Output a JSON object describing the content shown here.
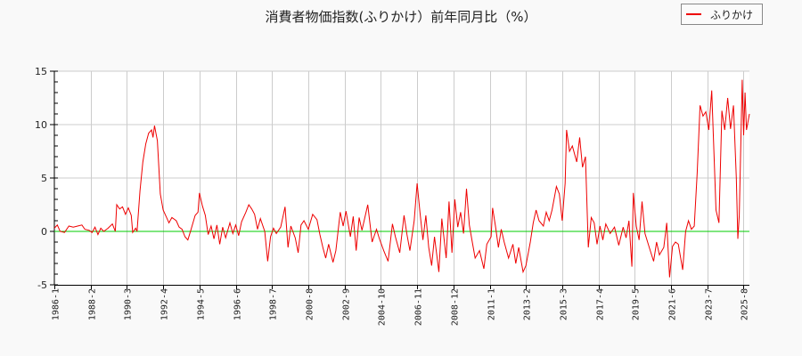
{
  "title": "消費者物価指数(ふりかけ）前年同月比（%）",
  "legend": {
    "label": "ふりかけ",
    "color": "#ee0000"
  },
  "colors": {
    "line": "#ee0000",
    "zero_line": "#00cc00",
    "grid": "#cccccc",
    "axis": "#000000",
    "plot_bg": "#ffffff",
    "page_bg": "#f9f9f9"
  },
  "chart_data": {
    "type": "line",
    "title": "消費者物価指数(ふりかけ）前年同月比（%）",
    "xlabel": "",
    "ylabel": "",
    "ylim": [
      -5,
      15
    ],
    "yticks": [
      -5,
      0,
      5,
      10,
      15
    ],
    "xticks": [
      "1986-1",
      "1988-2",
      "1990-3",
      "1992-4",
      "1994-5",
      "1996-6",
      "1998-7",
      "2000-8",
      "2002-9",
      "2004-10",
      "2006-11",
      "2008-12",
      "2011-1",
      "2013-2",
      "2015-3",
      "2017-4",
      "2019-5",
      "2021-6",
      "2023-7",
      "2025-8"
    ],
    "x_range": [
      "1986-1",
      "2025-12"
    ],
    "grid": true,
    "legend_position": "top-right",
    "series": [
      {
        "name": "ふりかけ",
        "points": [
          [
            "1986-1",
            0.3
          ],
          [
            "1986-3",
            0.6
          ],
          [
            "1986-5",
            0.0
          ],
          [
            "1986-8",
            -0.1
          ],
          [
            "1986-11",
            0.5
          ],
          [
            "1987-2",
            0.4
          ],
          [
            "1987-5",
            0.5
          ],
          [
            "1987-8",
            0.6
          ],
          [
            "1987-10",
            0.2
          ],
          [
            "1988-1",
            0.1
          ],
          [
            "1988-3",
            -0.1
          ],
          [
            "1988-5",
            0.4
          ],
          [
            "1988-7",
            -0.3
          ],
          [
            "1988-9",
            0.3
          ],
          [
            "1988-11",
            0.0
          ],
          [
            "1989-2",
            0.3
          ],
          [
            "1989-5",
            0.7
          ],
          [
            "1989-7",
            0.0
          ],
          [
            "1989-8",
            2.5
          ],
          [
            "1989-10",
            2.1
          ],
          [
            "1989-12",
            2.3
          ],
          [
            "1990-2",
            1.6
          ],
          [
            "1990-4",
            2.2
          ],
          [
            "1990-6",
            1.5
          ],
          [
            "1990-7",
            -0.1
          ],
          [
            "1990-9",
            0.3
          ],
          [
            "1990-10",
            0.0
          ],
          [
            "1990-12",
            3.8
          ],
          [
            "1991-2",
            6.5
          ],
          [
            "1991-4",
            8.2
          ],
          [
            "1991-6",
            9.2
          ],
          [
            "1991-8",
            9.5
          ],
          [
            "1991-9",
            8.8
          ],
          [
            "1991-10",
            9.9
          ],
          [
            "1991-12",
            8.5
          ],
          [
            "1992-2",
            3.5
          ],
          [
            "1992-4",
            2.0
          ],
          [
            "1992-6",
            1.4
          ],
          [
            "1992-8",
            0.8
          ],
          [
            "1992-10",
            1.3
          ],
          [
            "1993-1",
            1.0
          ],
          [
            "1993-3",
            0.4
          ],
          [
            "1993-5",
            0.2
          ],
          [
            "1993-7",
            -0.5
          ],
          [
            "1993-9",
            -0.8
          ],
          [
            "1993-11",
            0.1
          ],
          [
            "1994-2",
            1.5
          ],
          [
            "1994-4",
            1.8
          ],
          [
            "1994-5",
            3.6
          ],
          [
            "1994-7",
            2.4
          ],
          [
            "1994-9",
            1.5
          ],
          [
            "1994-11",
            -0.3
          ],
          [
            "1995-1",
            0.5
          ],
          [
            "1995-3",
            -0.7
          ],
          [
            "1995-5",
            0.6
          ],
          [
            "1995-7",
            -1.2
          ],
          [
            "1995-9",
            0.4
          ],
          [
            "1995-11",
            -0.6
          ],
          [
            "1996-2",
            0.8
          ],
          [
            "1996-4",
            -0.2
          ],
          [
            "1996-6",
            0.6
          ],
          [
            "1996-8",
            -0.4
          ],
          [
            "1996-10",
            0.9
          ],
          [
            "1997-1",
            1.8
          ],
          [
            "1997-3",
            2.5
          ],
          [
            "1997-5",
            2.1
          ],
          [
            "1997-7",
            1.6
          ],
          [
            "1997-9",
            0.2
          ],
          [
            "1997-11",
            1.2
          ],
          [
            "1998-2",
            0.0
          ],
          [
            "1998-4",
            -2.8
          ],
          [
            "1998-6",
            -0.5
          ],
          [
            "1998-8",
            0.3
          ],
          [
            "1998-10",
            -0.2
          ],
          [
            "1999-1",
            0.4
          ],
          [
            "1999-4",
            2.3
          ],
          [
            "1999-6",
            -1.5
          ],
          [
            "1999-8",
            0.5
          ],
          [
            "1999-11",
            -0.6
          ],
          [
            "2000-1",
            -2.0
          ],
          [
            "2000-3",
            0.6
          ],
          [
            "2000-5",
            1.0
          ],
          [
            "2000-8",
            0.2
          ],
          [
            "2000-11",
            1.6
          ],
          [
            "2001-2",
            1.1
          ],
          [
            "2001-4",
            -0.3
          ],
          [
            "2001-6",
            -1.5
          ],
          [
            "2001-8",
            -2.5
          ],
          [
            "2001-10",
            -1.2
          ],
          [
            "2002-1",
            -2.9
          ],
          [
            "2002-3",
            -1.8
          ],
          [
            "2002-6",
            1.8
          ],
          [
            "2002-8",
            0.5
          ],
          [
            "2002-10",
            1.9
          ],
          [
            "2003-1",
            -0.5
          ],
          [
            "2003-3",
            1.4
          ],
          [
            "2003-5",
            -1.8
          ],
          [
            "2003-7",
            1.3
          ],
          [
            "2003-9",
            0.1
          ],
          [
            "2004-1",
            2.5
          ],
          [
            "2004-4",
            -1.0
          ],
          [
            "2004-7",
            0.2
          ],
          [
            "2004-9",
            -0.7
          ],
          [
            "2004-12",
            -1.8
          ],
          [
            "2005-3",
            -2.8
          ],
          [
            "2005-6",
            0.7
          ],
          [
            "2005-8",
            -0.5
          ],
          [
            "2005-11",
            -2.0
          ],
          [
            "2006-2",
            1.5
          ],
          [
            "2006-4",
            -0.3
          ],
          [
            "2006-6",
            -1.8
          ],
          [
            "2006-9",
            1.0
          ],
          [
            "2006-11",
            4.5
          ],
          [
            "2007-1",
            1.7
          ],
          [
            "2007-3",
            -0.8
          ],
          [
            "2007-5",
            1.5
          ],
          [
            "2007-7",
            -1.5
          ],
          [
            "2007-9",
            -3.2
          ],
          [
            "2007-11",
            -0.5
          ],
          [
            "2008-2",
            -3.8
          ],
          [
            "2008-4",
            1.2
          ],
          [
            "2008-7",
            -2.5
          ],
          [
            "2008-9",
            2.8
          ],
          [
            "2008-11",
            -2.0
          ],
          [
            "2009-1",
            3.0
          ],
          [
            "2009-3",
            0.4
          ],
          [
            "2009-5",
            1.8
          ],
          [
            "2009-7",
            -0.2
          ],
          [
            "2009-9",
            4.0
          ],
          [
            "2009-11",
            0.6
          ],
          [
            "2010-1",
            -1.0
          ],
          [
            "2010-3",
            -2.5
          ],
          [
            "2010-6",
            -1.8
          ],
          [
            "2010-9",
            -3.5
          ],
          [
            "2010-11",
            -1.2
          ],
          [
            "2011-2",
            -0.5
          ],
          [
            "2011-3",
            2.2
          ],
          [
            "2011-5",
            0.5
          ],
          [
            "2011-7",
            -1.5
          ],
          [
            "2011-9",
            0.2
          ],
          [
            "2011-11",
            -1.0
          ],
          [
            "2012-2",
            -2.5
          ],
          [
            "2012-5",
            -1.2
          ],
          [
            "2012-7",
            -3.0
          ],
          [
            "2012-9",
            -1.5
          ],
          [
            "2012-12",
            -3.8
          ],
          [
            "2013-2",
            -3.2
          ],
          [
            "2013-5",
            -1.0
          ],
          [
            "2013-7",
            0.8
          ],
          [
            "2013-9",
            2.0
          ],
          [
            "2013-11",
            1.0
          ],
          [
            "2014-2",
            0.5
          ],
          [
            "2014-4",
            1.8
          ],
          [
            "2014-6",
            1.0
          ],
          [
            "2014-8",
            2.0
          ],
          [
            "2014-11",
            4.2
          ],
          [
            "2015-1",
            3.5
          ],
          [
            "2015-3",
            1.0
          ],
          [
            "2015-5",
            4.5
          ],
          [
            "2015-6",
            9.5
          ],
          [
            "2015-8",
            7.5
          ],
          [
            "2015-10",
            8.0
          ],
          [
            "2016-1",
            6.5
          ],
          [
            "2016-3",
            8.8
          ],
          [
            "2016-5",
            6.0
          ],
          [
            "2016-7",
            7.0
          ],
          [
            "2016-9",
            -1.5
          ],
          [
            "2016-11",
            1.3
          ],
          [
            "2017-1",
            0.8
          ],
          [
            "2017-3",
            -1.2
          ],
          [
            "2017-5",
            0.5
          ],
          [
            "2017-7",
            -0.8
          ],
          [
            "2017-9",
            0.7
          ],
          [
            "2017-12",
            -0.2
          ],
          [
            "2018-3",
            0.4
          ],
          [
            "2018-6",
            -1.3
          ],
          [
            "2018-9",
            0.4
          ],
          [
            "2018-11",
            -0.6
          ],
          [
            "2019-1",
            1.0
          ],
          [
            "2019-3",
            -3.3
          ],
          [
            "2019-4",
            3.6
          ],
          [
            "2019-6",
            0.5
          ],
          [
            "2019-8",
            -0.8
          ],
          [
            "2019-10",
            2.8
          ],
          [
            "2019-12",
            -0.2
          ],
          [
            "2020-3",
            -1.5
          ],
          [
            "2020-6",
            -2.8
          ],
          [
            "2020-8",
            -1.0
          ],
          [
            "2020-10",
            -2.2
          ],
          [
            "2021-1",
            -1.5
          ],
          [
            "2021-3",
            0.8
          ],
          [
            "2021-5",
            -4.3
          ],
          [
            "2021-7",
            -1.4
          ],
          [
            "2021-9",
            -1.0
          ],
          [
            "2021-11",
            -1.2
          ],
          [
            "2022-2",
            -3.6
          ],
          [
            "2022-4",
            0.0
          ],
          [
            "2022-6",
            1.0
          ],
          [
            "2022-8",
            0.2
          ],
          [
            "2022-10",
            0.5
          ],
          [
            "2022-12",
            5.5
          ],
          [
            "2023-2",
            11.8
          ],
          [
            "2023-4",
            10.8
          ],
          [
            "2023-6",
            11.2
          ],
          [
            "2023-8",
            9.5
          ],
          [
            "2023-10",
            13.2
          ],
          [
            "2024-1",
            2.0
          ],
          [
            "2024-3",
            0.8
          ],
          [
            "2024-5",
            11.3
          ],
          [
            "2024-7",
            9.5
          ],
          [
            "2024-9",
            12.5
          ],
          [
            "2024-11",
            9.6
          ],
          [
            "2025-1",
            11.8
          ],
          [
            "2025-3",
            5.0
          ],
          [
            "2025-4",
            -0.7
          ],
          [
            "2025-5",
            1.5
          ],
          [
            "2025-7",
            14.2
          ],
          [
            "2025-8",
            9.0
          ],
          [
            "2025-9",
            13.0
          ],
          [
            "2025-10",
            9.5
          ],
          [
            "2025-12",
            11.0
          ]
        ]
      }
    ]
  }
}
